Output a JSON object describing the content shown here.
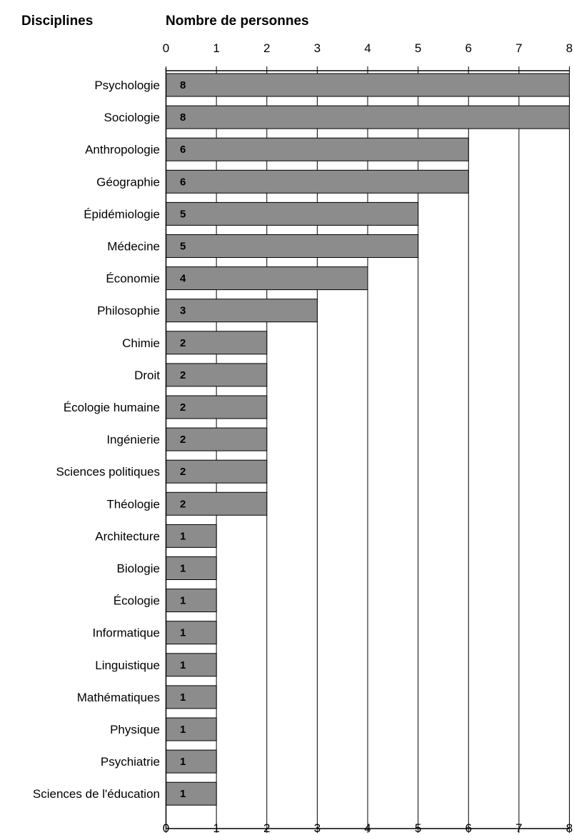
{
  "header": {
    "category_heading": "Disciplines",
    "value_heading": "Nombre de personnes"
  },
  "chart_data": {
    "type": "bar",
    "orientation": "horizontal",
    "title": "",
    "xlabel": "Nombre de personnes",
    "ylabel": "Disciplines",
    "xlim": [
      0,
      8
    ],
    "ticks": [
      "0",
      "1",
      "2",
      "3",
      "4",
      "5",
      "6",
      "7",
      "8"
    ],
    "grid": true,
    "bar_color": "#8c8c8c",
    "data_labels": true,
    "categories": [
      "Psychologie",
      "Sociologie",
      "Anthropologie",
      "Géographie",
      "Épidémiologie",
      "Médecine",
      "Économie",
      "Philosophie",
      "Chimie",
      "Droit",
      "Écologie humaine",
      "Ingénierie",
      "Sciences politiques",
      "Théologie",
      "Architecture",
      "Biologie",
      "Écologie",
      "Informatique",
      "Linguistique",
      "Mathématiques",
      "Physique",
      "Psychiatrie",
      "Sciences de l'éducation"
    ],
    "values": [
      8,
      8,
      6,
      6,
      5,
      5,
      4,
      3,
      2,
      2,
      2,
      2,
      2,
      2,
      1,
      1,
      1,
      1,
      1,
      1,
      1,
      1,
      1
    ]
  }
}
